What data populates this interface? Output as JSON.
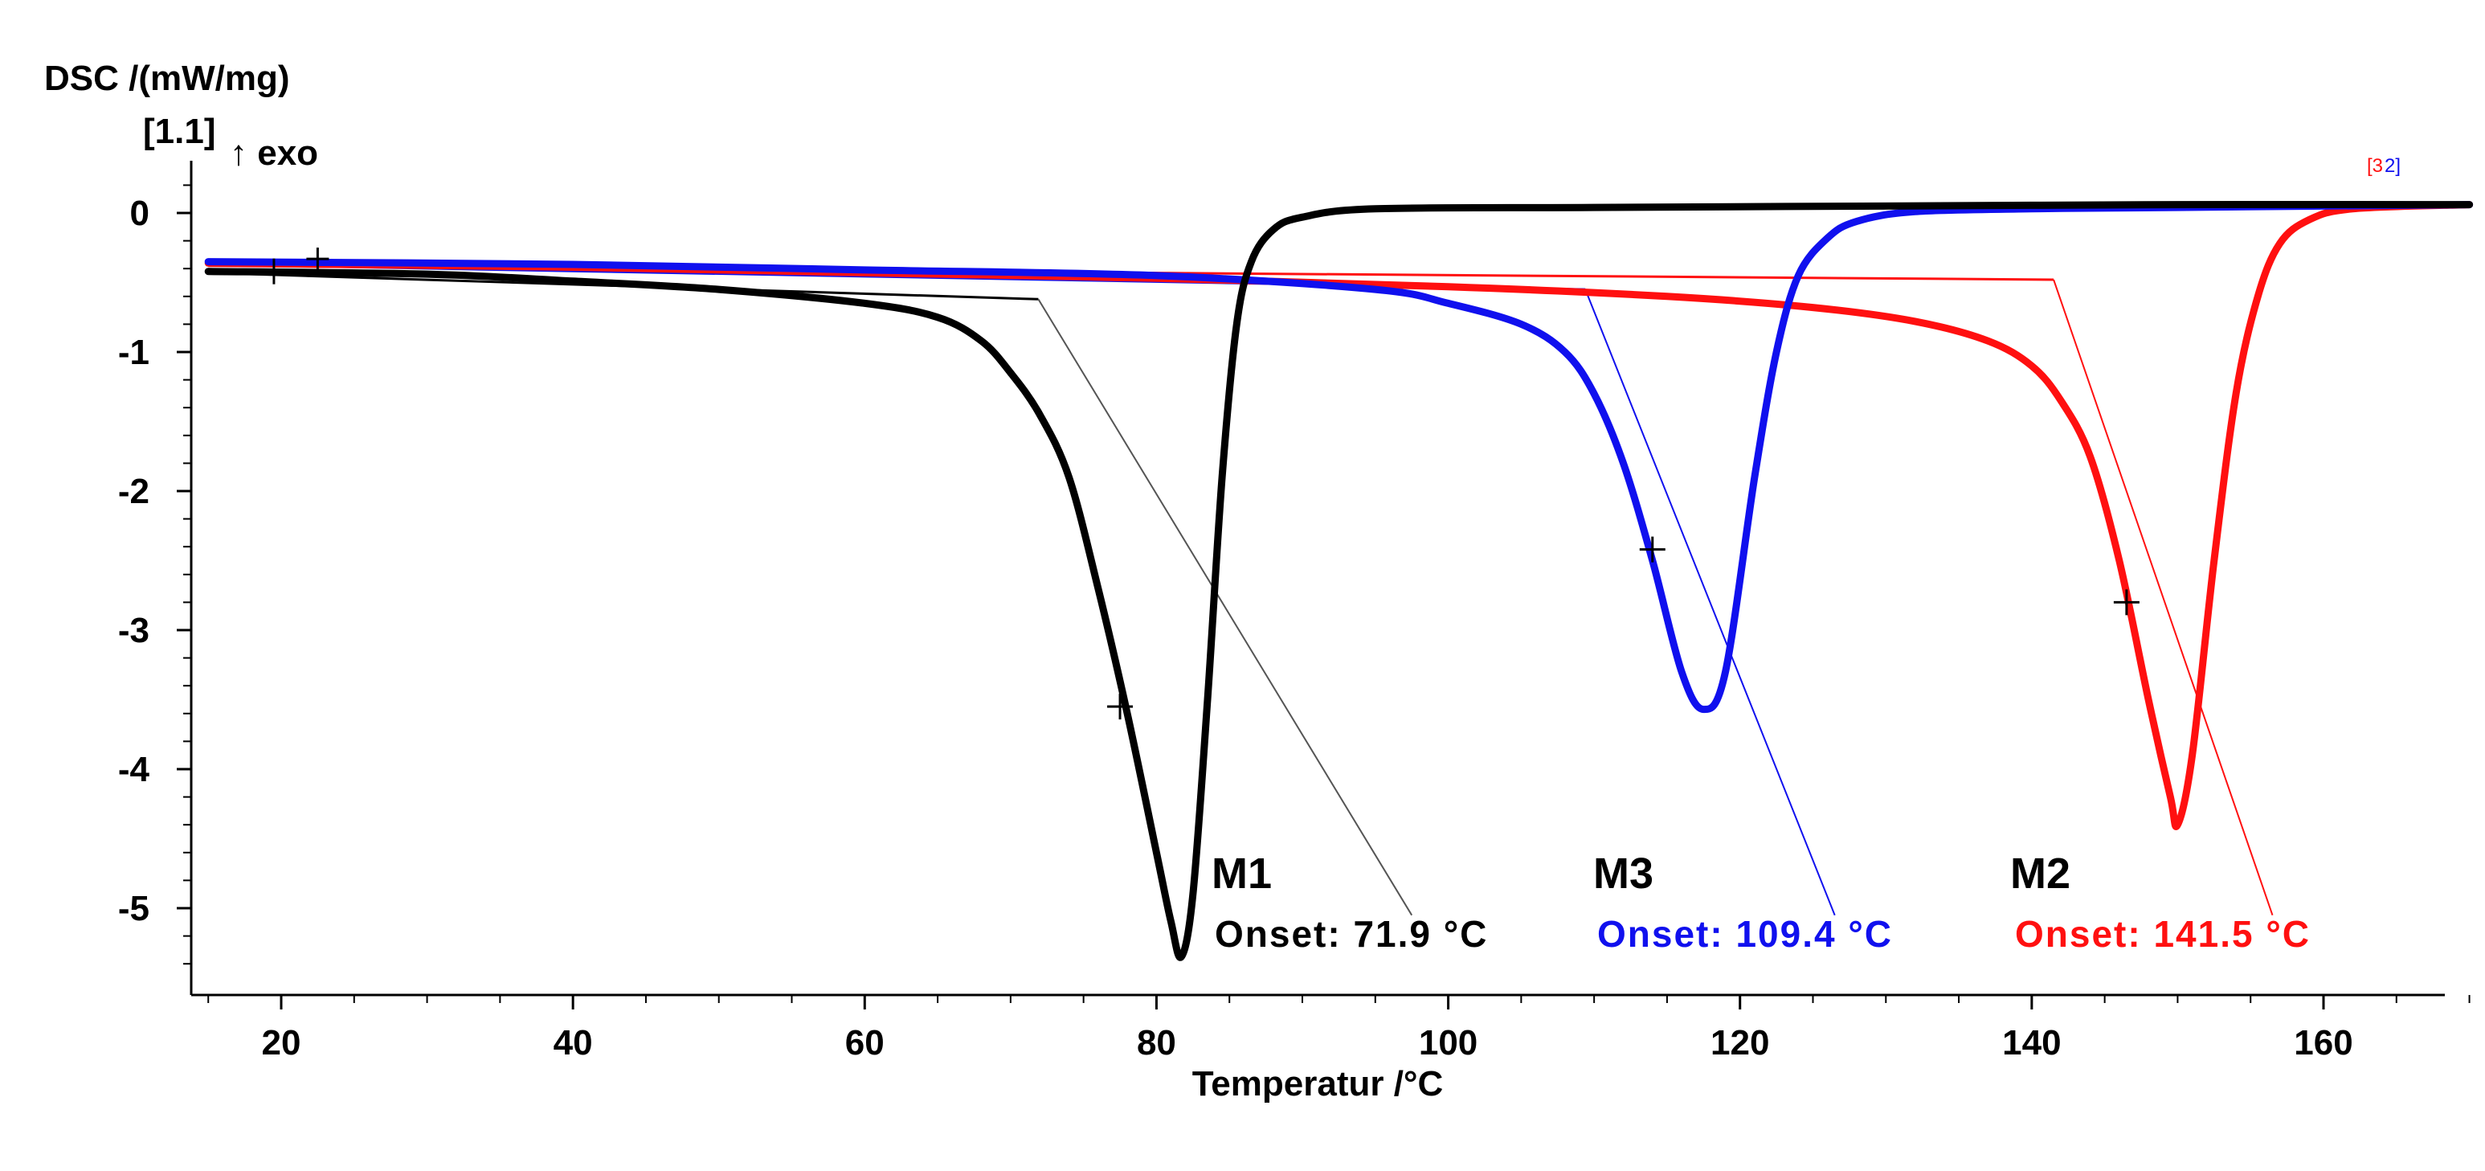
{
  "chart_data": {
    "type": "line",
    "title": "",
    "ylabel": "DSC /(mW/mg)",
    "ylabel_sub": "[1.1]",
    "exo_label": "↑ exo",
    "xlabel": "Temperatur /°C",
    "xlim": [
      15,
      171
    ],
    "ylim": [
      -5.55,
      0.35
    ],
    "xticks": [
      20,
      40,
      60,
      80,
      100,
      120,
      140,
      160
    ],
    "yticks": [
      0,
      -1,
      -2,
      -3,
      -4,
      -5
    ],
    "corner_tags": [
      "[3",
      "2]"
    ],
    "series": [
      {
        "name": "M1",
        "color": "#000000",
        "onset_label": "Onset: 71.9 °C",
        "onset": 71.9,
        "points": [
          [
            15,
            -0.42
          ],
          [
            30,
            -0.44
          ],
          [
            40,
            -0.49
          ],
          [
            50,
            -0.55
          ],
          [
            60,
            -0.65
          ],
          [
            65,
            -0.75
          ],
          [
            68,
            -0.92
          ],
          [
            70,
            -1.15
          ],
          [
            72,
            -1.45
          ],
          [
            74,
            -1.9
          ],
          [
            76,
            -2.7
          ],
          [
            78,
            -3.6
          ],
          [
            80,
            -4.6
          ],
          [
            81,
            -5.1
          ],
          [
            81.7,
            -5.35
          ],
          [
            82.5,
            -4.9
          ],
          [
            83.5,
            -3.5
          ],
          [
            84.5,
            -1.9
          ],
          [
            85.5,
            -0.8
          ],
          [
            86.5,
            -0.35
          ],
          [
            88,
            -0.12
          ],
          [
            90,
            -0.03
          ],
          [
            95,
            0.03
          ],
          [
            110,
            0.04
          ],
          [
            130,
            0.05
          ],
          [
            150,
            0.06
          ],
          [
            170,
            0.06
          ]
        ],
        "baseline": [
          [
            15,
            -0.43
          ],
          [
            71.9,
            -0.62
          ]
        ],
        "tangent": [
          [
            71.9,
            -0.62
          ],
          [
            97.5,
            -5.05
          ]
        ],
        "markers": [
          [
            19.5,
            -0.42
          ],
          [
            77.5,
            -3.55
          ]
        ]
      },
      {
        "name": "M3",
        "color": "#1010ee",
        "onset_label": "Onset: 109.4 °C",
        "onset": 109.4,
        "points": [
          [
            15,
            -0.35
          ],
          [
            40,
            -0.37
          ],
          [
            60,
            -0.41
          ],
          [
            80,
            -0.45
          ],
          [
            95,
            -0.55
          ],
          [
            100,
            -0.65
          ],
          [
            105,
            -0.8
          ],
          [
            108,
            -1.0
          ],
          [
            110,
            -1.3
          ],
          [
            112,
            -1.8
          ],
          [
            114,
            -2.5
          ],
          [
            116,
            -3.3
          ],
          [
            117.5,
            -3.57
          ],
          [
            119,
            -3.3
          ],
          [
            121,
            -1.9
          ],
          [
            122.5,
            -1.0
          ],
          [
            124,
            -0.45
          ],
          [
            126,
            -0.18
          ],
          [
            128,
            -0.06
          ],
          [
            132,
            0.01
          ],
          [
            140,
            0.03
          ],
          [
            150,
            0.04
          ],
          [
            170,
            0.06
          ]
        ],
        "baseline": [
          [
            15,
            -0.37
          ],
          [
            109.4,
            -0.55
          ]
        ],
        "tangent": [
          [
            109.4,
            -0.55
          ],
          [
            126.5,
            -5.05
          ]
        ],
        "markers": [
          [
            114,
            -2.42
          ]
        ]
      },
      {
        "name": "M2",
        "color": "#ff1010",
        "onset_label": "Onset: 141.5 °C",
        "onset": 141.5,
        "points": [
          [
            15,
            -0.36
          ],
          [
            40,
            -0.39
          ],
          [
            60,
            -0.43
          ],
          [
            80,
            -0.47
          ],
          [
            100,
            -0.53
          ],
          [
            115,
            -0.6
          ],
          [
            125,
            -0.68
          ],
          [
            132,
            -0.78
          ],
          [
            137,
            -0.92
          ],
          [
            140,
            -1.1
          ],
          [
            142,
            -1.35
          ],
          [
            144,
            -1.75
          ],
          [
            146,
            -2.5
          ],
          [
            148,
            -3.5
          ],
          [
            149.5,
            -4.2
          ],
          [
            150,
            -4.4
          ],
          [
            151,
            -3.9
          ],
          [
            152.5,
            -2.5
          ],
          [
            154,
            -1.3
          ],
          [
            155.5,
            -0.6
          ],
          [
            157,
            -0.22
          ],
          [
            159,
            -0.05
          ],
          [
            162,
            0.03
          ],
          [
            170,
            0.06
          ]
        ],
        "baseline": [
          [
            15,
            -0.38
          ],
          [
            141.5,
            -0.48
          ]
        ],
        "tangent": [
          [
            141.5,
            -0.48
          ],
          [
            156.5,
            -5.05
          ]
        ],
        "markers": [
          [
            146.5,
            -2.8
          ]
        ]
      }
    ],
    "extra_markers": [
      [
        22.5,
        -0.33
      ]
    ]
  }
}
